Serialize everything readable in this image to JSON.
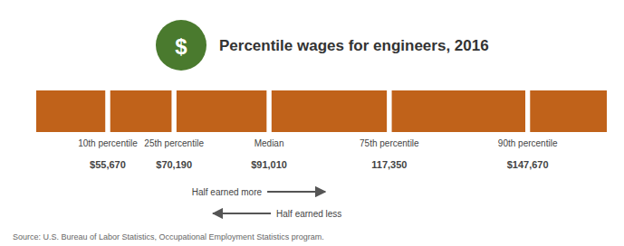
{
  "chart_data": {
    "type": "percentile",
    "title": "Percentile wages for engineers, 2016",
    "categories": [
      "10th percentile",
      "25th percentile",
      "Median",
      "75th percentile",
      "90th percentile"
    ],
    "values": [
      55670,
      70190,
      91010,
      117350,
      147670
    ],
    "value_labels": [
      "$55,670",
      "$70,190",
      "$91,010",
      "117,350",
      "$147,670"
    ],
    "data_labels": true,
    "xlim": [
      40000,
      165000
    ],
    "orientation": "horizontal",
    "tick_labels": false,
    "color": "#c0621a",
    "annotations": [
      {
        "text": "Half earned more",
        "x": 91010,
        "arrow": "right"
      },
      {
        "text": "Half earned less",
        "x": 91010,
        "arrow": "left"
      }
    ],
    "icon": {
      "text": "$",
      "color": "#4a7a2e"
    },
    "source": "Source: U.S. Bureau of Labor Statistics, Occupational Employment Statistics program."
  }
}
